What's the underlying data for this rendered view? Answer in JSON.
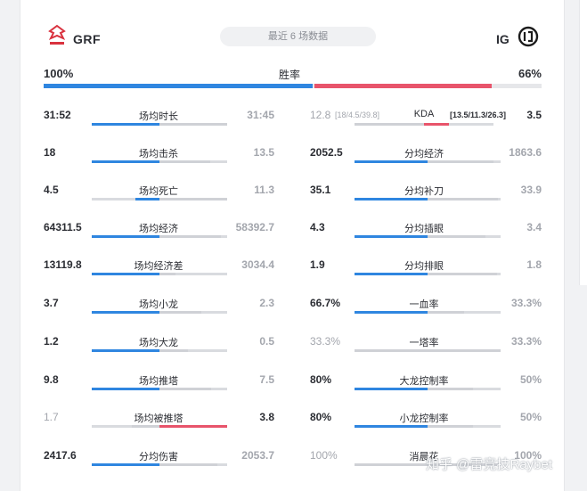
{
  "header": {
    "left_team": "GRF",
    "right_team": "IG",
    "period_label": "最近 6 场数据"
  },
  "win_rate": {
    "label": "胜率",
    "left": "100%",
    "right": "66%",
    "left_value": 100,
    "right_value": 66
  },
  "left_stats": [
    {
      "label": "场均时长",
      "left": "31:52",
      "right": "31:45",
      "left_value": 31.87,
      "right_value": 31.75
    },
    {
      "label": "场均击杀",
      "left": "18",
      "right": "13.5",
      "left_value": 18,
      "right_value": 13.5
    },
    {
      "label": "场均死亡",
      "left": "4.5",
      "right": "11.3",
      "left_value": 4.5,
      "right_value": 11.3
    },
    {
      "label": "场均经济",
      "left": "64311.5",
      "right": "58392.7",
      "left_value": 64311.5,
      "right_value": 58392.7
    },
    {
      "label": "场均经济差",
      "left": "13119.8",
      "right": "3034.4",
      "left_value": 13119.8,
      "right_value": 3034.4
    },
    {
      "label": "场均小龙",
      "left": "3.7",
      "right": "2.3",
      "left_value": 3.7,
      "right_value": 2.3
    },
    {
      "label": "场均大龙",
      "left": "1.2",
      "right": "0.5",
      "left_value": 1.2,
      "right_value": 0.5
    },
    {
      "label": "场均推塔",
      "left": "9.8",
      "right": "7.5",
      "left_value": 9.8,
      "right_value": 7.5
    },
    {
      "label": "场均被推塔",
      "left": "1.7",
      "right": "3.8",
      "left_value": 1.7,
      "right_value": 3.8,
      "right_leads": true
    },
    {
      "label": "分均伤害",
      "left": "2417.6",
      "right": "2053.7",
      "left_value": 2417.6,
      "right_value": 2053.7
    }
  ],
  "kda": {
    "label": "KDA",
    "left": "12.8",
    "left_detail": "[18/4.5/39.8]",
    "right": "3.5",
    "right_detail": "[13.5/11.3/26.3]",
    "left_value": 12.8,
    "right_value": 3.5
  },
  "right_stats": [
    {
      "label": "分均经济",
      "left": "2052.5",
      "right": "1863.6",
      "left_value": 2052.5,
      "right_value": 1863.6
    },
    {
      "label": "分均补刀",
      "left": "35.1",
      "right": "33.9",
      "left_value": 35.1,
      "right_value": 33.9
    },
    {
      "label": "分均插眼",
      "left": "4.3",
      "right": "3.4",
      "left_value": 4.3,
      "right_value": 3.4
    },
    {
      "label": "分均排眼",
      "left": "1.9",
      "right": "1.8",
      "left_value": 1.9,
      "right_value": 1.8
    },
    {
      "label": "一血率",
      "left": "66.7%",
      "right": "33.3%",
      "left_value": 66.7,
      "right_value": 33.3
    },
    {
      "label": "一塔率",
      "left": "33.3%",
      "right": "33.3%",
      "left_value": 33.3,
      "right_value": 33.3,
      "dim_left": true
    },
    {
      "label": "大龙控制率",
      "left": "80%",
      "right": "50%",
      "left_value": 80,
      "right_value": 50
    },
    {
      "label": "小龙控制率",
      "left": "80%",
      "right": "50%",
      "left_value": 80,
      "right_value": 50
    },
    {
      "label": "消晨花",
      "left": "100%",
      "right": "100%",
      "left_value": 100,
      "right_value": 100,
      "dim_left": true
    }
  ],
  "watermark": "知乎 @雷竞技Raybet",
  "colors": {
    "blue": "#2f86e0",
    "red": "#e8546b",
    "track": "#d9dbdf"
  }
}
